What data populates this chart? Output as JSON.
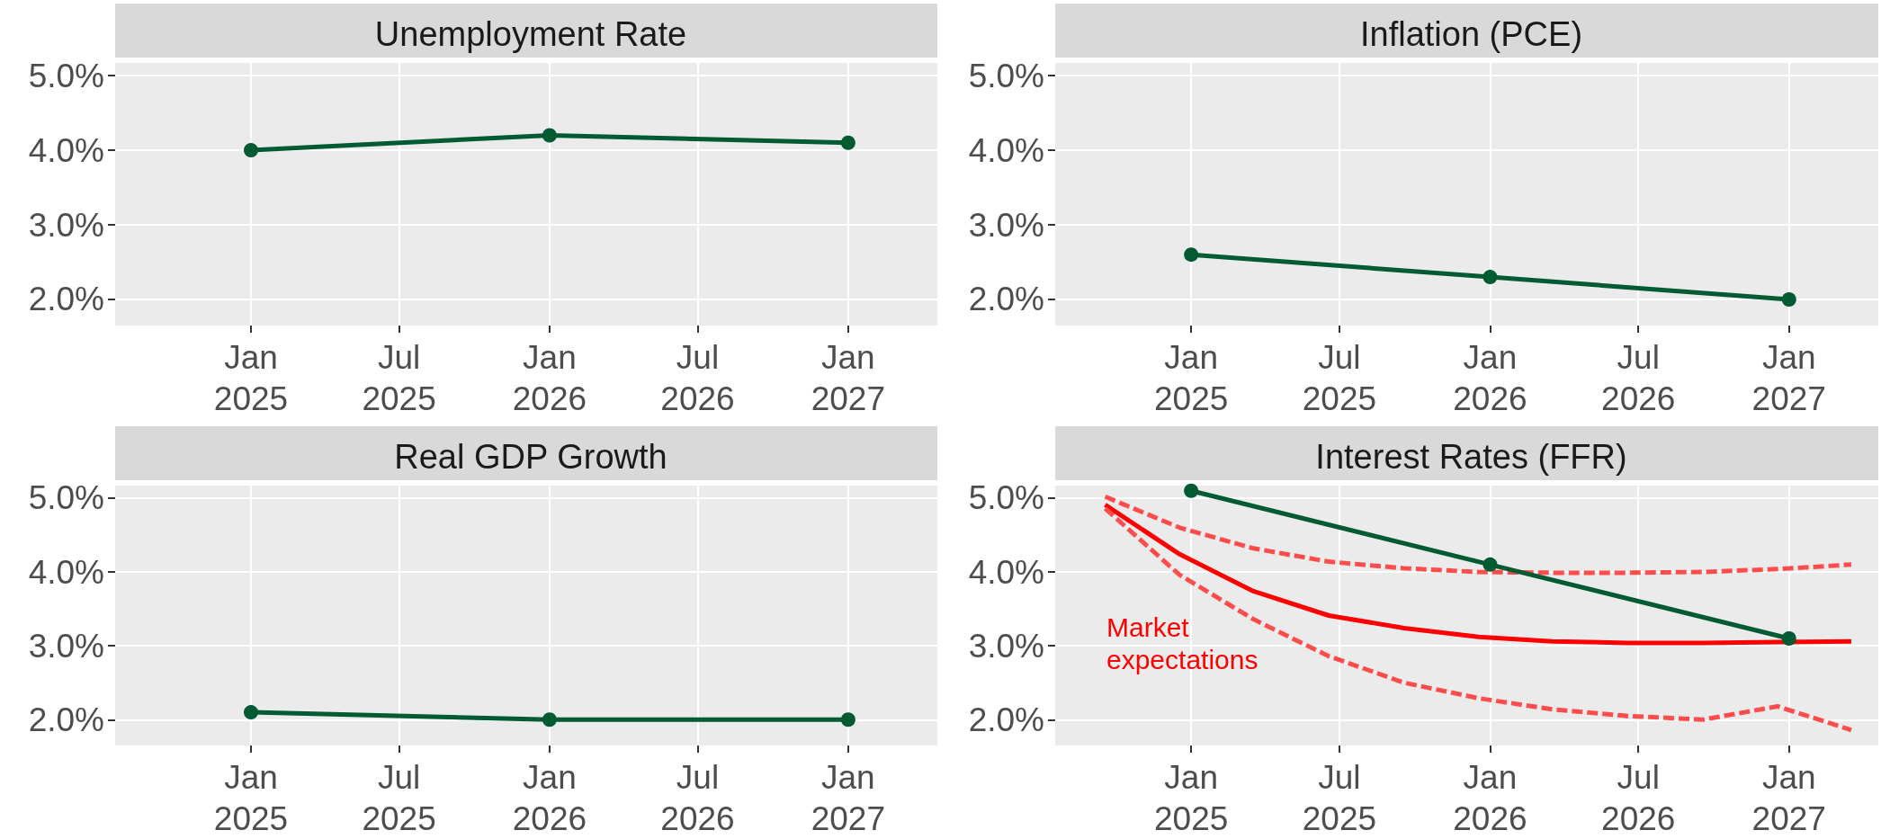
{
  "chart_data": [
    {
      "type": "line",
      "title": "Unemployment Rate",
      "xlim": [
        "2024-07-19",
        "2027-04-20"
      ],
      "ylim": [
        1.65,
        5.17
      ],
      "xticks": [
        {
          "value": "2025-01-01",
          "label": "Jan\n2025"
        },
        {
          "value": "2025-07-01",
          "label": "Jul\n2025"
        },
        {
          "value": "2026-01-01",
          "label": "Jan\n2026"
        },
        {
          "value": "2026-07-01",
          "label": "Jul\n2026"
        },
        {
          "value": "2027-01-01",
          "label": "Jan\n2027"
        }
      ],
      "yticks": [
        {
          "value": 2,
          "label": "2.0%"
        },
        {
          "value": 3,
          "label": "3.0%"
        },
        {
          "value": 4,
          "label": "4.0%"
        },
        {
          "value": 5,
          "label": "5.0%"
        }
      ],
      "grid": true,
      "series": [
        {
          "color": "#005a32",
          "marker": "circle",
          "line_style": "solid",
          "x": [
            "2025-01-01",
            "2026-01-01",
            "2027-01-01"
          ],
          "values": [
            4.0,
            4.2,
            4.1
          ]
        }
      ]
    },
    {
      "type": "line",
      "title": "Inflation (PCE)",
      "xlim": [
        "2024-07-19",
        "2027-04-20"
      ],
      "ylim": [
        1.65,
        5.17
      ],
      "xticks": [
        {
          "value": "2025-01-01",
          "label": "Jan\n2025"
        },
        {
          "value": "2025-07-01",
          "label": "Jul\n2025"
        },
        {
          "value": "2026-01-01",
          "label": "Jan\n2026"
        },
        {
          "value": "2026-07-01",
          "label": "Jul\n2026"
        },
        {
          "value": "2027-01-01",
          "label": "Jan\n2027"
        }
      ],
      "yticks": [
        {
          "value": 2,
          "label": "2.0%"
        },
        {
          "value": 3,
          "label": "3.0%"
        },
        {
          "value": 4,
          "label": "4.0%"
        },
        {
          "value": 5,
          "label": "5.0%"
        }
      ],
      "grid": true,
      "series": [
        {
          "color": "#005a32",
          "marker": "circle",
          "line_style": "solid",
          "x": [
            "2025-01-01",
            "2026-01-01",
            "2027-01-01"
          ],
          "values": [
            2.6,
            2.3,
            2.0
          ]
        }
      ]
    },
    {
      "type": "line",
      "title": "Real GDP Growth",
      "xlim": [
        "2024-07-19",
        "2027-04-20"
      ],
      "ylim": [
        1.65,
        5.17
      ],
      "xticks": [
        {
          "value": "2025-01-01",
          "label": "Jan\n2025"
        },
        {
          "value": "2025-07-01",
          "label": "Jul\n2025"
        },
        {
          "value": "2026-01-01",
          "label": "Jan\n2026"
        },
        {
          "value": "2026-07-01",
          "label": "Jul\n2026"
        },
        {
          "value": "2027-01-01",
          "label": "Jan\n2027"
        }
      ],
      "yticks": [
        {
          "value": 2,
          "label": "2.0%"
        },
        {
          "value": 3,
          "label": "3.0%"
        },
        {
          "value": 4,
          "label": "4.0%"
        },
        {
          "value": 5,
          "label": "5.0%"
        }
      ],
      "grid": true,
      "series": [
        {
          "color": "#005a32",
          "marker": "circle",
          "line_style": "solid",
          "x": [
            "2025-01-01",
            "2026-01-01",
            "2027-01-01"
          ],
          "values": [
            2.1,
            2.0,
            2.0
          ]
        }
      ]
    },
    {
      "type": "line",
      "title": "Interest Rates (FFR)",
      "xlim": [
        "2024-07-19",
        "2027-04-20"
      ],
      "ylim": [
        1.65,
        5.17
      ],
      "xticks": [
        {
          "value": "2025-01-01",
          "label": "Jan\n2025"
        },
        {
          "value": "2025-07-01",
          "label": "Jul\n2025"
        },
        {
          "value": "2026-01-01",
          "label": "Jan\n2026"
        },
        {
          "value": "2026-07-01",
          "label": "Jul\n2026"
        },
        {
          "value": "2027-01-01",
          "label": "Jan\n2027"
        }
      ],
      "yticks": [
        {
          "value": 2,
          "label": "2.0%"
        },
        {
          "value": 3,
          "label": "3.0%"
        },
        {
          "value": 4,
          "label": "4.0%"
        },
        {
          "value": 5,
          "label": "5.0%"
        }
      ],
      "grid": true,
      "annotations": [
        "Market\nexpectations"
      ],
      "series": [
        {
          "color": "#005a32",
          "marker": "circle",
          "line_style": "solid",
          "x": [
            "2025-01-01",
            "2026-01-01",
            "2027-01-01"
          ],
          "values": [
            5.1,
            4.1,
            3.1
          ]
        },
        {
          "color": "#ff0000",
          "marker": "none",
          "line_style": "solid",
          "x": [
            "2024-09-18",
            "2024-12-18",
            "2025-03-18",
            "2025-06-18",
            "2025-09-18",
            "2025-12-18",
            "2026-03-18",
            "2026-06-18",
            "2026-09-18",
            "2026-12-18",
            "2027-03-18"
          ],
          "values": [
            4.91,
            4.24,
            3.74,
            3.41,
            3.24,
            3.12,
            3.06,
            3.04,
            3.04,
            3.05,
            3.06
          ]
        },
        {
          "color": "#ff4d4d",
          "marker": "none",
          "line_style": "dashed",
          "x": [
            "2024-09-18",
            "2024-12-18",
            "2025-03-18",
            "2025-06-18",
            "2025-09-18",
            "2025-12-18",
            "2026-03-18",
            "2026-06-18",
            "2026-09-18",
            "2026-12-18",
            "2027-03-18"
          ],
          "values": [
            5.02,
            4.6,
            4.32,
            4.14,
            4.05,
            4.0,
            3.99,
            3.99,
            4.0,
            4.04,
            4.1
          ]
        },
        {
          "color": "#ff4d4d",
          "marker": "none",
          "line_style": "dashed",
          "x": [
            "2024-09-18",
            "2024-12-18",
            "2025-03-18",
            "2025-06-18",
            "2025-09-18",
            "2025-12-18",
            "2026-03-18",
            "2026-06-18",
            "2026-09-18",
            "2026-12-18",
            "2027-03-18"
          ],
          "values": [
            4.86,
            3.96,
            3.36,
            2.86,
            2.5,
            2.29,
            2.14,
            2.05,
            2.0,
            2.18,
            1.86
          ]
        }
      ]
    }
  ]
}
